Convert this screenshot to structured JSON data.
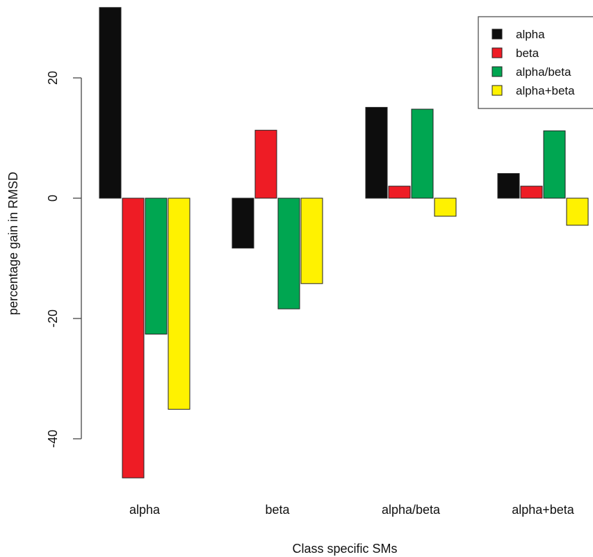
{
  "chart_data": {
    "type": "bar",
    "title": "",
    "xlabel": "Class specific SMs",
    "ylabel": "percentage gain in RMSD",
    "categories": [
      "alpha",
      "beta",
      "alpha/beta",
      "alpha+beta"
    ],
    "y_ticks": [
      "20",
      "0",
      "-20",
      "-40"
    ],
    "ylim": [
      -48,
      32
    ],
    "grid": false,
    "legend_position": "top-right",
    "series": [
      {
        "name": "alpha",
        "color": "#0d0d0d",
        "values": [
          31.7,
          -8.3,
          15.1,
          4.1
        ]
      },
      {
        "name": "beta",
        "color": "#ee1c25",
        "values": [
          -46.5,
          11.3,
          2.0,
          2.0
        ]
      },
      {
        "name": "alpha/beta",
        "color": "#00a651",
        "values": [
          -22.6,
          -18.4,
          14.8,
          11.2
        ]
      },
      {
        "name": "alpha+beta",
        "color": "#fff200",
        "values": [
          -35.1,
          -14.2,
          -3.0,
          -4.5
        ]
      }
    ]
  }
}
